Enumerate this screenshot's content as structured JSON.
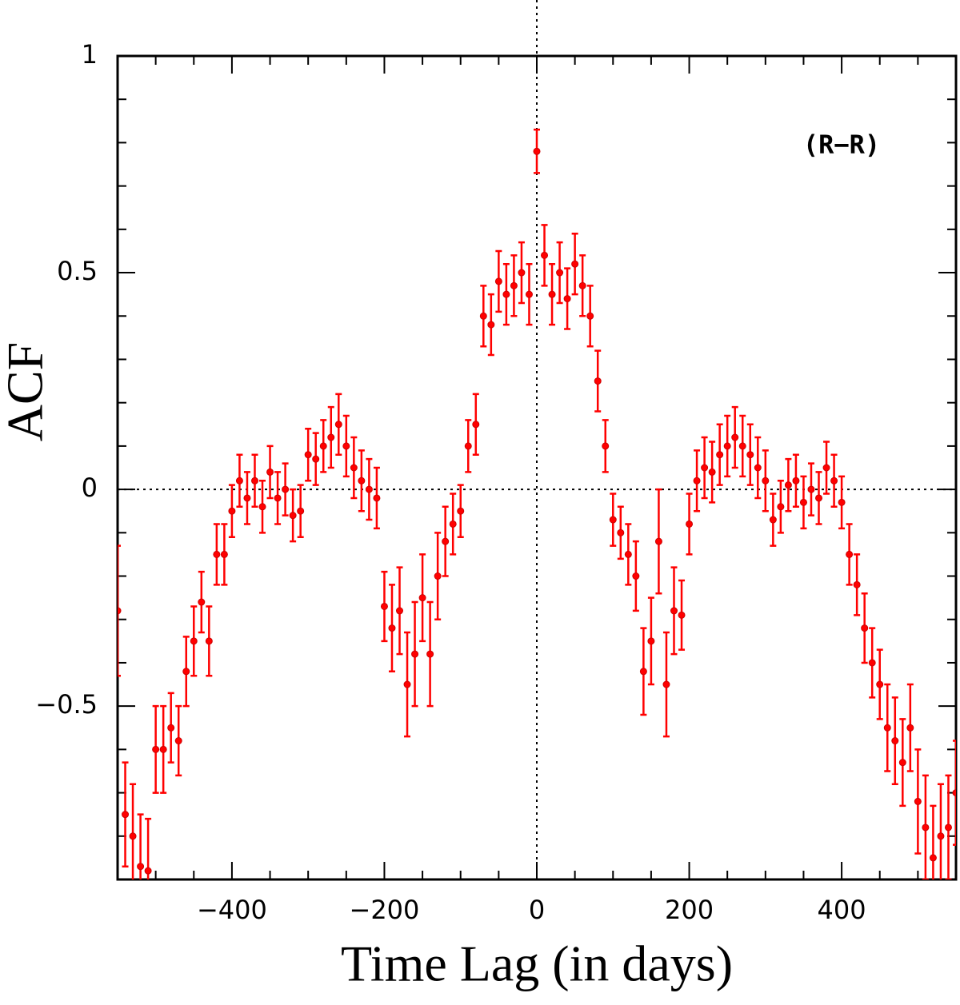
{
  "chart_data": {
    "type": "scatter",
    "annotation": "(R−R)",
    "xlabel": "Time Lag (in days)",
    "ylabel": "ACF",
    "color": "#ff0000",
    "xlim": [
      -550,
      550
    ],
    "ylim": [
      -0.9,
      1
    ],
    "xticks": [
      {
        "value": -400,
        "label": "−400"
      },
      {
        "value": -200,
        "label": "−200"
      },
      0,
      200,
      400
    ],
    "yticks": [
      {
        "value": -0.5,
        "label": "−0.5"
      },
      0,
      0.5,
      1
    ],
    "xticks_minor": [
      -500,
      -450,
      -350,
      -300,
      -250,
      -150,
      -100,
      -50,
      50,
      100,
      150,
      250,
      300,
      350,
      450,
      500
    ],
    "yticks_minor": [
      -0.8,
      -0.7,
      -0.6,
      -0.4,
      -0.3,
      -0.2,
      -0.1,
      0.1,
      0.2,
      0.3,
      0.4,
      0.6,
      0.7,
      0.8,
      0.9
    ],
    "hline": 0,
    "vline": 0,
    "x": [
      -550,
      -540,
      -530,
      -520,
      -510,
      -500,
      -490,
      -480,
      -470,
      -460,
      -450,
      -440,
      -430,
      -420,
      -410,
      -400,
      -390,
      -380,
      -370,
      -360,
      -350,
      -340,
      -330,
      -320,
      -310,
      -300,
      -290,
      -280,
      -270,
      -260,
      -250,
      -240,
      -230,
      -220,
      -210,
      -200,
      -190,
      -180,
      -170,
      -160,
      -150,
      -140,
      -130,
      -120,
      -110,
      -100,
      -90,
      -80,
      -70,
      -60,
      -50,
      -40,
      -30,
      -20,
      -10,
      0,
      10,
      20,
      30,
      40,
      50,
      60,
      70,
      80,
      90,
      100,
      110,
      120,
      130,
      140,
      150,
      160,
      170,
      180,
      190,
      200,
      210,
      220,
      230,
      240,
      250,
      260,
      270,
      280,
      290,
      300,
      310,
      320,
      330,
      340,
      350,
      360,
      370,
      380,
      390,
      400,
      410,
      420,
      430,
      440,
      450,
      460,
      470,
      480,
      490,
      500,
      510,
      520,
      530,
      540,
      550
    ],
    "values": [
      -0.28,
      -0.75,
      -0.8,
      -0.87,
      -0.88,
      -0.6,
      -0.6,
      -0.55,
      -0.58,
      -0.42,
      -0.35,
      -0.26,
      -0.35,
      -0.15,
      -0.15,
      -0.05,
      0.02,
      -0.02,
      0.02,
      -0.04,
      0.04,
      -0.02,
      0.0,
      -0.06,
      -0.05,
      0.08,
      0.07,
      0.1,
      0.12,
      0.15,
      0.1,
      0.05,
      0.02,
      0.0,
      -0.02,
      -0.27,
      -0.32,
      -0.28,
      -0.45,
      -0.38,
      -0.25,
      -0.38,
      -0.2,
      -0.12,
      -0.08,
      -0.05,
      0.1,
      0.15,
      0.4,
      0.38,
      0.48,
      0.45,
      0.47,
      0.5,
      0.45,
      0.78,
      0.54,
      0.45,
      0.5,
      0.44,
      0.52,
      0.47,
      0.4,
      0.25,
      0.1,
      -0.07,
      -0.1,
      -0.15,
      -0.2,
      -0.42,
      -0.35,
      -0.12,
      -0.45,
      -0.28,
      -0.29,
      -0.08,
      0.02,
      0.05,
      0.04,
      0.08,
      0.1,
      0.12,
      0.1,
      0.08,
      0.05,
      0.02,
      -0.07,
      -0.04,
      0.01,
      0.02,
      -0.03,
      0.0,
      -0.02,
      0.05,
      0.02,
      -0.03,
      -0.15,
      -0.22,
      -0.32,
      -0.4,
      -0.45,
      -0.55,
      -0.58,
      -0.63,
      -0.55,
      -0.72,
      -0.78,
      -0.85,
      -0.8,
      -0.78,
      -0.7
    ],
    "errors": [
      0.15,
      0.12,
      0.12,
      0.12,
      0.12,
      0.1,
      0.1,
      0.08,
      0.08,
      0.08,
      0.08,
      0.07,
      0.08,
      0.07,
      0.07,
      0.06,
      0.06,
      0.06,
      0.06,
      0.06,
      0.06,
      0.06,
      0.06,
      0.06,
      0.06,
      0.06,
      0.06,
      0.06,
      0.07,
      0.07,
      0.07,
      0.07,
      0.07,
      0.07,
      0.07,
      0.08,
      0.1,
      0.1,
      0.12,
      0.12,
      0.1,
      0.12,
      0.1,
      0.08,
      0.07,
      0.06,
      0.06,
      0.07,
      0.07,
      0.07,
      0.07,
      0.07,
      0.07,
      0.07,
      0.07,
      0.05,
      0.07,
      0.07,
      0.07,
      0.07,
      0.07,
      0.07,
      0.07,
      0.07,
      0.06,
      0.06,
      0.06,
      0.07,
      0.08,
      0.1,
      0.1,
      0.12,
      0.12,
      0.1,
      0.08,
      0.07,
      0.07,
      0.07,
      0.07,
      0.07,
      0.07,
      0.07,
      0.07,
      0.07,
      0.07,
      0.07,
      0.06,
      0.06,
      0.06,
      0.06,
      0.06,
      0.06,
      0.06,
      0.06,
      0.06,
      0.06,
      0.07,
      0.07,
      0.08,
      0.08,
      0.08,
      0.1,
      0.1,
      0.1,
      0.1,
      0.12,
      0.12,
      0.12,
      0.12,
      0.12,
      0.12
    ]
  }
}
